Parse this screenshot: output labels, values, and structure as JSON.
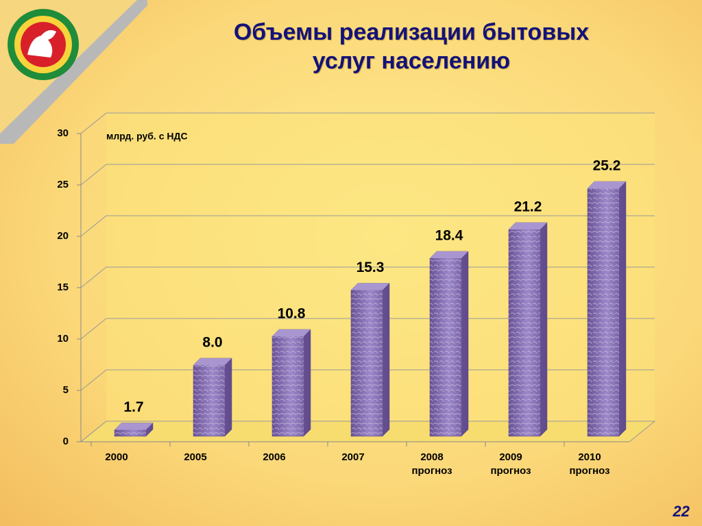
{
  "chart_data": {
    "type": "bar3d",
    "title": "Объемы реализации бытовых услуг населению",
    "unit_label": "млрд. руб. с НДС",
    "categories": [
      "2000",
      "2005",
      "2006",
      "2007",
      "2008 прогноз",
      "2009 прогноз",
      "2010 прогноз"
    ],
    "values": [
      1.7,
      8.0,
      10.8,
      15.3,
      18.4,
      21.2,
      25.2
    ],
    "value_labels": [
      "1.7",
      "8.0",
      "10.8",
      "15.3",
      "18.4",
      "21.2",
      "25.2"
    ],
    "color": "#7a5fa8",
    "ylim": [
      0,
      30
    ],
    "yticks": [
      0,
      5,
      10,
      15,
      20,
      25,
      30
    ],
    "grid": true
  },
  "page_number": "22"
}
